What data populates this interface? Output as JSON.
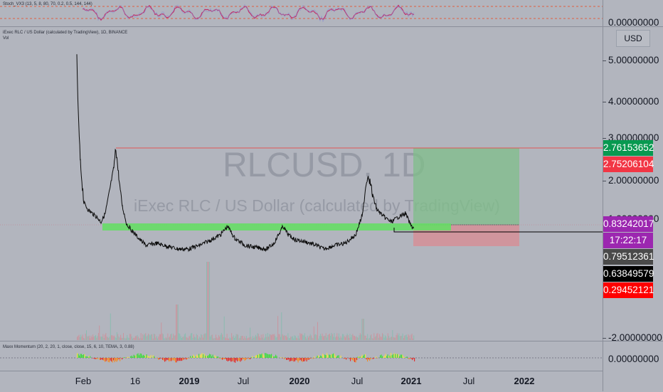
{
  "symbol_watermark": "RLCUSD, 1D",
  "description_watermark": "iExec RLC / US Dollar (calculated by TradingView)",
  "top_indicator": {
    "label": "Stoch_VX3 (13, 5, 8, 80, 70, 0.2, 0.5, 144, 144)",
    "axis_value": "0.00000000"
  },
  "main_legend": {
    "title": "iExec RLC / US Dollar (calculated by TradingView), 1D, BINANCE",
    "vol": "Vol"
  },
  "currency_button": "USD",
  "price_axis": {
    "ticks": [
      "5.00000000",
      "4.00000000",
      "3.00000000",
      "2.00000000",
      "1.00000000",
      "-2.00000000"
    ]
  },
  "price_badges": [
    {
      "label": "2.76153652",
      "color": "#089950"
    },
    {
      "label": "2.75206104",
      "color": "#f23645"
    },
    {
      "label": "0.83242017",
      "color": "#9c27b0"
    },
    {
      "label": "17:22:17",
      "color": "#9c27b0"
    },
    {
      "label": "0.79512361",
      "color": "#4a4a4a"
    },
    {
      "label": "0.63849579",
      "color": "#000000"
    },
    {
      "label": "0.29452121",
      "color": "#ff0000"
    }
  ],
  "bottom_indicator": {
    "label": "Maxx Momentum (20, 2, 20, 1, close, close, 15, 6, 10, TEMA, 3, 0.88)",
    "axis_value": "0.00000000"
  },
  "time_axis": [
    {
      "label": "Feb",
      "bold": false
    },
    {
      "label": "16",
      "bold": false
    },
    {
      "label": "2019",
      "bold": true
    },
    {
      "label": "Jul",
      "bold": false
    },
    {
      "label": "2020",
      "bold": true
    },
    {
      "label": "Jul",
      "bold": false
    },
    {
      "label": "2021",
      "bold": true
    },
    {
      "label": "Jul",
      "bold": false
    },
    {
      "label": "2022",
      "bold": true
    }
  ],
  "colors": {
    "background": "#b2b5be",
    "long_profit_zone": "#7fbf8a",
    "long_loss_zone": "#d98b91",
    "support_zone": "#66dd66",
    "resistance_line": "#e05555",
    "stoch_line": "#c0306a",
    "price_line": "#0a0a0a"
  }
}
